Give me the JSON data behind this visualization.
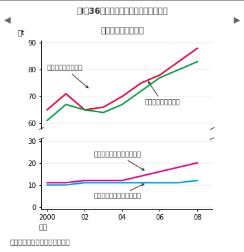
{
  "title_line1": "図Ⅰ－36　国内産麦の販売予定数量及び",
  "title_line2": "購入希望数量の推移",
  "ylabel": "万t",
  "xlabel_bottom": "年産",
  "source": "資料：民間流通連絡協議会調べ",
  "years": [
    2000,
    2001,
    2002,
    2003,
    2004,
    2005,
    2006,
    2007,
    2008
  ],
  "wheat_sales": [
    65,
    71,
    65,
    66,
    70,
    75,
    78,
    83,
    88
  ],
  "wheat_purchase": [
    61,
    67,
    65,
    64,
    67,
    72,
    77,
    80,
    83
  ],
  "barley_purchase": [
    11,
    11,
    12,
    12,
    12,
    14,
    16,
    18,
    20
  ],
  "barley_sales": [
    10,
    10,
    11,
    11,
    11,
    11,
    11,
    11,
    12
  ],
  "wheat_sales_color": "#e8003c",
  "wheat_purchase_color": "#00a040",
  "barley_purchase_color": "#dd0090",
  "barley_sales_color": "#00a0e0",
  "title_bg_color": "#c8dc96",
  "title_text_color": "#333333",
  "bg_color": "#ffffff"
}
